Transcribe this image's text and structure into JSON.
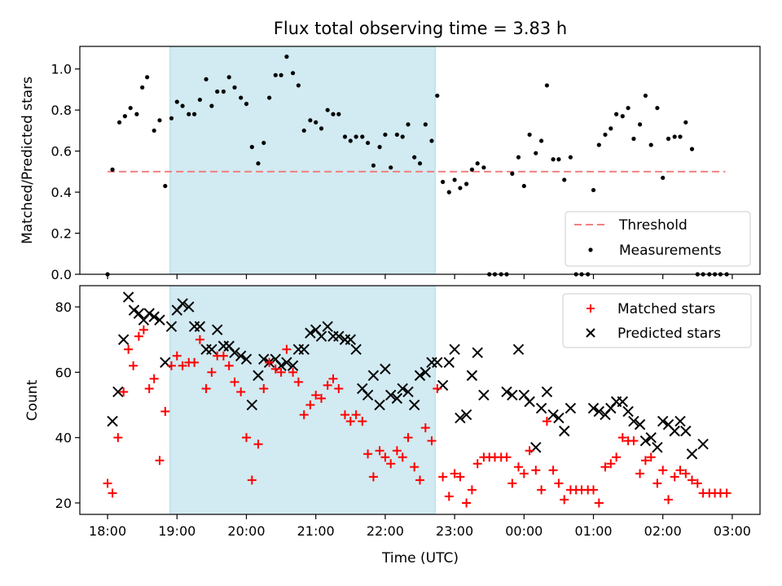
{
  "title": "Flux total observing time = 3.83 h",
  "colors": {
    "threshold": "#f08080",
    "measurement": "#000000",
    "matched": "#ff0000",
    "predicted": "#000000",
    "shade": "#add8e6"
  },
  "chart_data": [
    {
      "type": "scatter",
      "ylabel": "Matched/Predicted stars",
      "xlim": [
        17.6,
        27.4
      ],
      "ylim": [
        0.0,
        1.11
      ],
      "yticks": [
        0.0,
        0.2,
        0.4,
        0.6,
        0.8,
        1.0
      ],
      "shaded_x": [
        18.9,
        22.72
      ],
      "legend_position": "lower right",
      "legend": [
        "Threshold",
        "Measurements"
      ],
      "threshold": {
        "name": "Threshold",
        "y": 0.5,
        "x": [
          18.0,
          26.9
        ]
      },
      "series": [
        {
          "name": "Measurements",
          "marker": "dot",
          "x": [
            18.0,
            18.07,
            18.17,
            18.25,
            18.33,
            18.42,
            18.5,
            18.57,
            18.67,
            18.75,
            18.83,
            18.92,
            19.0,
            19.08,
            19.17,
            19.25,
            19.33,
            19.42,
            19.5,
            19.58,
            19.67,
            19.75,
            19.83,
            19.92,
            20.0,
            20.08,
            20.17,
            20.25,
            20.33,
            20.42,
            20.5,
            20.58,
            20.67,
            20.75,
            20.83,
            20.92,
            21.0,
            21.08,
            21.17,
            21.25,
            21.33,
            21.42,
            21.5,
            21.58,
            21.67,
            21.75,
            21.83,
            21.92,
            22.0,
            22.08,
            22.17,
            22.25,
            22.33,
            22.42,
            22.5,
            22.58,
            22.67,
            22.75,
            22.83,
            22.92,
            23.0,
            23.08,
            23.17,
            23.25,
            23.33,
            23.42,
            23.5,
            23.58,
            23.67,
            23.75,
            23.83,
            23.92,
            24.0,
            24.08,
            24.17,
            24.25,
            24.33,
            24.42,
            24.5,
            24.58,
            24.67,
            24.75,
            24.83,
            24.92,
            25.0,
            25.08,
            25.17,
            25.25,
            25.33,
            25.42,
            25.5,
            25.58,
            25.67,
            25.75,
            25.83,
            25.92,
            26.0,
            26.08,
            26.17,
            26.25,
            26.33,
            26.42,
            26.5,
            26.58,
            26.67,
            26.75,
            26.83,
            26.92
          ],
          "y": [
            0.0,
            0.51,
            0.74,
            0.77,
            0.81,
            0.78,
            0.91,
            0.96,
            0.7,
            0.75,
            0.43,
            0.76,
            0.84,
            0.82,
            0.78,
            0.78,
            0.85,
            0.95,
            0.82,
            0.89,
            0.89,
            0.96,
            0.91,
            0.86,
            0.83,
            0.62,
            0.54,
            0.64,
            0.86,
            0.97,
            0.97,
            1.06,
            0.98,
            0.92,
            0.7,
            0.75,
            0.74,
            0.71,
            0.8,
            0.78,
            0.78,
            0.67,
            0.65,
            0.67,
            0.67,
            0.64,
            0.53,
            0.62,
            0.68,
            0.52,
            0.68,
            0.67,
            0.73,
            0.57,
            0.54,
            0.73,
            0.65,
            0.87,
            0.45,
            0.4,
            0.46,
            0.42,
            0.44,
            0.51,
            0.54,
            0.52,
            0.0,
            0.0,
            0.0,
            0.0,
            0.49,
            0.57,
            0.43,
            0.68,
            0.59,
            0.65,
            0.92,
            0.56,
            0.56,
            0.46,
            0.57,
            0.0,
            0.0,
            0.0,
            0.41,
            0.63,
            0.68,
            0.71,
            0.78,
            0.77,
            0.81,
            0.66,
            0.73,
            0.87,
            0.63,
            0.81,
            0.47,
            0.66,
            0.67,
            0.67,
            0.74,
            0.61,
            0.0,
            0.0,
            0.0,
            0.0,
            0.0,
            0.0
          ]
        }
      ]
    },
    {
      "type": "scatter",
      "xlabel": "Time (UTC)",
      "ylabel": "Count",
      "xlim": [
        17.6,
        27.4
      ],
      "ylim": [
        16.5,
        86.5
      ],
      "yticks": [
        20,
        40,
        60,
        80
      ],
      "xticks": [
        18,
        19,
        20,
        21,
        22,
        23,
        24,
        25,
        26,
        27
      ],
      "xtick_labels": [
        "18:00",
        "19:00",
        "20:00",
        "21:00",
        "22:00",
        "23:00",
        "00:00",
        "01:00",
        "02:00",
        "03:00"
      ],
      "shaded_x": [
        18.9,
        22.72
      ],
      "legend_position": "upper right",
      "legend": [
        "Matched stars",
        "Predicted stars"
      ],
      "series": [
        {
          "name": "Matched stars",
          "marker": "plus",
          "x": [
            18.0,
            18.07,
            18.15,
            18.23,
            18.3,
            18.37,
            18.45,
            18.52,
            18.6,
            18.67,
            18.75,
            18.83,
            18.92,
            19.0,
            19.08,
            19.17,
            19.25,
            19.33,
            19.42,
            19.5,
            19.58,
            19.67,
            19.75,
            19.83,
            19.92,
            20.0,
            20.08,
            20.17,
            20.25,
            20.33,
            20.42,
            20.5,
            20.58,
            20.67,
            20.75,
            20.83,
            20.92,
            21.0,
            21.08,
            21.17,
            21.25,
            21.33,
            21.42,
            21.5,
            21.58,
            21.67,
            21.75,
            21.83,
            21.92,
            22.0,
            22.08,
            22.17,
            22.25,
            22.33,
            22.42,
            22.5,
            22.58,
            22.67,
            22.75,
            22.83,
            22.92,
            23.0,
            23.08,
            23.17,
            23.25,
            23.33,
            23.42,
            23.5,
            23.58,
            23.67,
            23.75,
            23.83,
            23.92,
            24.0,
            24.08,
            24.17,
            24.25,
            24.33,
            24.42,
            24.5,
            24.58,
            24.67,
            24.75,
            24.83,
            24.92,
            25.0,
            25.08,
            25.17,
            25.25,
            25.33,
            25.42,
            25.5,
            25.58,
            25.67,
            25.75,
            25.83,
            25.92,
            26.0,
            26.08,
            26.17,
            26.25,
            26.33,
            26.42,
            26.5,
            26.58,
            26.67,
            26.75,
            26.83,
            26.92
          ],
          "y": [
            26,
            23,
            40,
            54,
            67,
            62,
            71,
            73,
            55,
            58,
            33,
            48,
            62,
            65,
            62,
            63,
            63,
            70,
            55,
            60,
            65,
            65,
            62,
            57,
            54,
            40,
            27,
            38,
            55,
            63,
            61,
            60,
            67,
            60,
            57,
            47,
            50,
            53,
            52,
            56,
            58,
            55,
            47,
            45,
            47,
            45,
            35,
            28,
            36,
            34,
            32,
            36,
            34,
            40,
            31,
            27,
            43,
            39,
            55,
            28,
            22,
            29,
            28,
            20,
            24,
            32,
            34,
            34,
            34,
            34,
            34,
            26,
            31,
            29,
            36,
            30,
            24,
            45,
            30,
            26,
            21,
            24,
            24,
            24,
            24,
            24,
            20,
            31,
            32,
            34,
            40,
            39,
            39,
            29,
            33,
            34,
            26,
            30,
            21,
            28,
            30,
            29,
            27,
            26,
            23,
            23,
            23,
            23,
            23
          ]
        },
        {
          "name": "Predicted stars",
          "marker": "x",
          "x": [
            18.07,
            18.15,
            18.23,
            18.3,
            18.38,
            18.45,
            18.52,
            18.6,
            18.67,
            18.75,
            18.83,
            18.92,
            19.0,
            19.08,
            19.17,
            19.25,
            19.33,
            19.42,
            19.5,
            19.58,
            19.67,
            19.75,
            19.83,
            19.92,
            20.0,
            20.08,
            20.17,
            20.25,
            20.33,
            20.42,
            20.5,
            20.58,
            20.67,
            20.75,
            20.83,
            20.92,
            21.0,
            21.08,
            21.17,
            21.25,
            21.33,
            21.42,
            21.5,
            21.58,
            21.67,
            21.75,
            21.83,
            21.92,
            22.0,
            22.08,
            22.17,
            22.25,
            22.33,
            22.42,
            22.5,
            22.58,
            22.67,
            22.75,
            22.83,
            22.92,
            23.0,
            23.08,
            23.17,
            23.25,
            23.33,
            23.42,
            23.75,
            23.83,
            23.92,
            24.0,
            24.08,
            24.17,
            24.25,
            24.33,
            24.42,
            24.5,
            24.58,
            24.67,
            25.0,
            25.08,
            25.17,
            25.25,
            25.33,
            25.42,
            25.5,
            25.58,
            25.67,
            25.75,
            25.83,
            25.92,
            26.0,
            26.08,
            26.17,
            26.25,
            26.33,
            26.42,
            26.58
          ],
          "y": [
            45,
            54,
            70,
            83,
            79,
            78,
            76,
            78,
            77,
            76,
            63,
            74,
            79,
            81,
            80,
            74,
            74,
            67,
            67,
            73,
            68,
            68,
            66,
            65,
            64,
            50,
            59,
            64,
            63,
            64,
            62,
            63,
            62,
            67,
            67,
            72,
            73,
            71,
            74,
            71,
            71,
            70,
            70,
            67,
            55,
            53,
            59,
            50,
            61,
            53,
            52,
            55,
            54,
            50,
            59,
            60,
            63,
            63,
            56,
            63,
            67,
            46,
            47,
            59,
            66,
            53,
            54,
            53,
            67,
            53,
            51,
            37,
            49,
            54,
            47,
            46,
            42,
            49,
            49,
            48,
            47,
            49,
            51,
            51,
            48,
            45,
            44,
            39,
            40,
            37,
            45,
            44,
            42,
            45,
            42,
            35,
            38
          ]
        }
      ]
    }
  ]
}
